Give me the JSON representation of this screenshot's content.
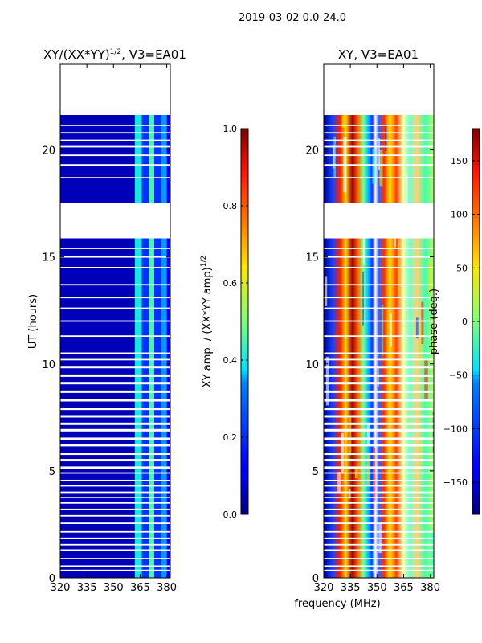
{
  "figure": {
    "suptitle": "2019-03-02 0.0-24.0",
    "xlabel_shared": "frequency (MHz)"
  },
  "chart_data": [
    {
      "type": "heatmap",
      "panel": "amplitude",
      "title": "XY/(XX*YY)",
      "title_sup": "1/2",
      "title_suffix": ", V3=EA01",
      "xlabel": "",
      "ylabel": "UT (hours)",
      "xlim": [
        320,
        382
      ],
      "ylim": [
        0,
        24
      ],
      "xticks": [
        320,
        335,
        350,
        365,
        380
      ],
      "yticks": [
        0,
        5,
        10,
        15,
        20
      ],
      "colorbar": {
        "label": "XY amp. / (XX*YY amp)",
        "label_sup": "1/2",
        "range": [
          0.0,
          1.0
        ],
        "ticks": [
          "0.0",
          "0.2",
          "0.4",
          "0.6",
          "0.8",
          "1.0"
        ],
        "tick_values": [
          0.0,
          0.2,
          0.4,
          0.6,
          0.8,
          1.0
        ],
        "colormap": "jet"
      },
      "data_extent_hours": [
        0,
        21.7
      ],
      "bands": [
        {
          "freq": [
            320,
            362
          ],
          "typical_value": 0.05
        },
        {
          "freq": [
            362,
            366
          ],
          "typical_value": 0.4
        },
        {
          "freq": [
            366,
            370
          ],
          "typical_value": 0.2
        },
        {
          "freq": [
            370,
            373
          ],
          "typical_value": 0.45
        },
        {
          "freq": [
            373,
            377
          ],
          "typical_value": 0.2
        },
        {
          "freq": [
            377,
            380
          ],
          "typical_value": 0.35
        },
        {
          "freq": [
            380,
            382
          ],
          "typical_value": 0.1
        }
      ]
    },
    {
      "type": "heatmap",
      "panel": "phase",
      "title": "XY, V3=EA01",
      "xlabel": "frequency (MHz)",
      "ylabel": "",
      "xlim": [
        320,
        382
      ],
      "ylim": [
        0,
        24
      ],
      "xticks": [
        320,
        335,
        350,
        365,
        380
      ],
      "yticks": [
        0,
        5,
        10,
        15,
        20
      ],
      "colorbar": {
        "label": "phase (deg.)",
        "range": [
          -180,
          180
        ],
        "ticks": [
          "−150",
          "−100",
          "−50",
          "0",
          "50",
          "100",
          "150"
        ],
        "tick_values": [
          -150,
          -100,
          -50,
          0,
          50,
          100,
          150
        ],
        "colormap": "jet"
      },
      "data_extent_hours": [
        0,
        21.7
      ]
    }
  ],
  "style": {
    "gap_color": "#ffffff",
    "axis_color": "#000000"
  }
}
